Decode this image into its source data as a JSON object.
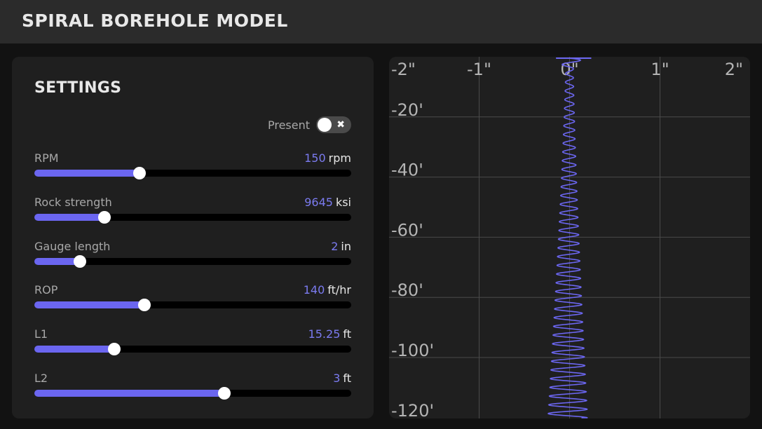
{
  "header": {
    "title": "SPIRAL BOREHOLE MODEL"
  },
  "settings": {
    "title": "SETTINGS",
    "present": {
      "label": "Present",
      "on": false,
      "off_glyph": "✖"
    },
    "sliders": [
      {
        "label": "RPM",
        "value": "150",
        "unit": "rpm",
        "fraction": 0.332
      },
      {
        "label": "Rock strength",
        "value": "9645",
        "unit": "ksi",
        "fraction": 0.221
      },
      {
        "label": "Gauge length",
        "value": "2",
        "unit": "in",
        "fraction": 0.144
      },
      {
        "label": "ROP",
        "value": "140",
        "unit": "ft/hr",
        "fraction": 0.347
      },
      {
        "label": "L1",
        "value": "15.25",
        "unit": "ft",
        "fraction": 0.252
      },
      {
        "label": "L2",
        "value": "3",
        "unit": "ft",
        "fraction": 0.6
      }
    ],
    "accent_color": "#6b66f0",
    "value_color": "#7b7bf0"
  },
  "plot": {
    "x_ticks": [
      "-2\"",
      "-1\"",
      "0\"",
      "1\"",
      "2\""
    ],
    "y_ticks": [
      "-20'",
      "-40'",
      "-60'",
      "-80'",
      "-100'",
      "-120'"
    ],
    "line_color": "#6b66f0",
    "grid": true,
    "chart_data": {
      "type": "line",
      "x_unit": "in",
      "y_unit": "ft",
      "xlim": [
        -2,
        2
      ],
      "ylim": [
        -120,
        0
      ],
      "y_gridlines": [
        -20,
        -40,
        -60,
        -80,
        -100,
        -120
      ],
      "x_gridlines": [
        -1,
        0,
        1
      ],
      "series": [
        {
          "description_points": {
            "depth_start": 0,
            "depth_end": -120,
            "amplitude_in_start": 0.04,
            "amplitude_in_end": 0.22,
            "period_ft": 2.9,
            "center_in_start": 0.0,
            "center_in_end": -0.02
          }
        }
      ]
    }
  }
}
